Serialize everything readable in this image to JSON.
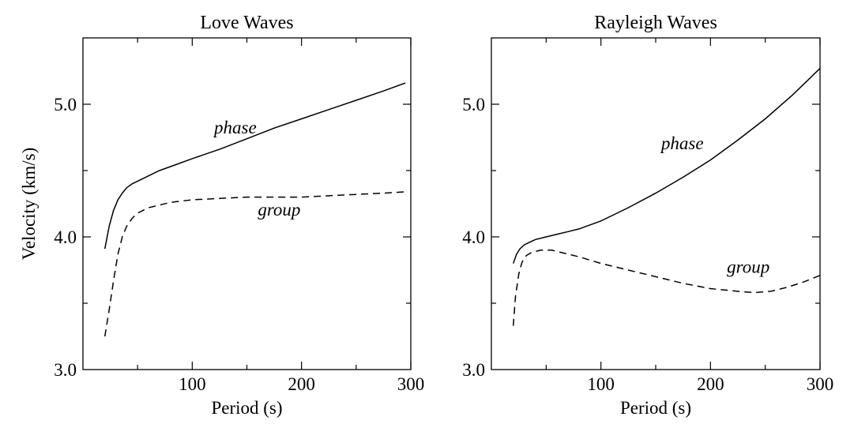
{
  "chart_data": [
    {
      "type": "line",
      "title": "Love Waves",
      "xlabel": "Period (s)",
      "ylabel": "Velocity (km/s)",
      "xlim": [
        0,
        300
      ],
      "ylim": [
        3.0,
        5.5
      ],
      "xticks": [
        100,
        200,
        300
      ],
      "xtick_labels": [
        "100",
        "200",
        "300"
      ],
      "yticks": [
        3.0,
        4.0,
        5.0
      ],
      "ytick_labels": [
        "3.0",
        "4.0",
        "5.0"
      ],
      "series": [
        {
          "name": "phase",
          "style": "solid",
          "x": [
            20,
            24,
            28,
            32,
            36,
            40,
            45,
            50,
            60,
            70,
            80,
            100,
            125,
            150,
            175,
            200,
            225,
            250,
            275,
            295
          ],
          "y": [
            3.91,
            4.08,
            4.2,
            4.28,
            4.33,
            4.37,
            4.4,
            4.42,
            4.46,
            4.5,
            4.53,
            4.59,
            4.66,
            4.74,
            4.82,
            4.89,
            4.96,
            5.03,
            5.1,
            5.16
          ]
        },
        {
          "name": "group",
          "style": "dashed",
          "x": [
            20,
            24,
            28,
            32,
            36,
            40,
            45,
            50,
            55,
            60,
            70,
            80,
            100,
            125,
            150,
            175,
            200,
            225,
            250,
            275,
            295
          ],
          "y": [
            3.25,
            3.45,
            3.67,
            3.87,
            4.0,
            4.08,
            4.14,
            4.18,
            4.2,
            4.22,
            4.24,
            4.26,
            4.28,
            4.29,
            4.3,
            4.3,
            4.3,
            4.31,
            4.32,
            4.33,
            4.34
          ]
        }
      ],
      "annotations": [
        {
          "text": "phase",
          "x": 120,
          "y": 4.78
        },
        {
          "text": "group",
          "x": 160,
          "y": 4.16
        }
      ]
    },
    {
      "type": "line",
      "title": "Rayleigh Waves",
      "xlabel": "Period (s)",
      "ylabel": "",
      "xlim": [
        0,
        300
      ],
      "ylim": [
        3.0,
        5.5
      ],
      "xticks": [
        100,
        200,
        300
      ],
      "xtick_labels": [
        "100",
        "200",
        "300"
      ],
      "yticks": [
        3.0,
        4.0,
        5.0
      ],
      "ytick_labels": [
        "3.0",
        "4.0",
        "5.0"
      ],
      "series": [
        {
          "name": "phase",
          "style": "solid",
          "x": [
            20,
            23,
            26,
            30,
            35,
            40,
            50,
            60,
            70,
            80,
            100,
            125,
            150,
            175,
            200,
            225,
            250,
            275,
            300
          ],
          "y": [
            3.8,
            3.87,
            3.91,
            3.94,
            3.96,
            3.98,
            4.0,
            4.02,
            4.04,
            4.06,
            4.12,
            4.22,
            4.33,
            4.45,
            4.58,
            4.73,
            4.89,
            5.07,
            5.27
          ]
        },
        {
          "name": "group",
          "style": "dashed",
          "x": [
            20,
            22,
            25,
            28,
            32,
            36,
            40,
            45,
            50,
            55,
            60,
            70,
            80,
            100,
            125,
            150,
            175,
            200,
            225,
            240,
            255,
            270,
            285,
            300
          ],
          "y": [
            3.33,
            3.55,
            3.72,
            3.81,
            3.86,
            3.88,
            3.89,
            3.9,
            3.9,
            3.9,
            3.89,
            3.87,
            3.85,
            3.8,
            3.75,
            3.7,
            3.65,
            3.61,
            3.59,
            3.58,
            3.59,
            3.62,
            3.66,
            3.71
          ]
        }
      ],
      "annotations": [
        {
          "text": "phase",
          "x": 155,
          "y": 4.66
        },
        {
          "text": "group",
          "x": 215,
          "y": 3.73
        }
      ]
    }
  ]
}
